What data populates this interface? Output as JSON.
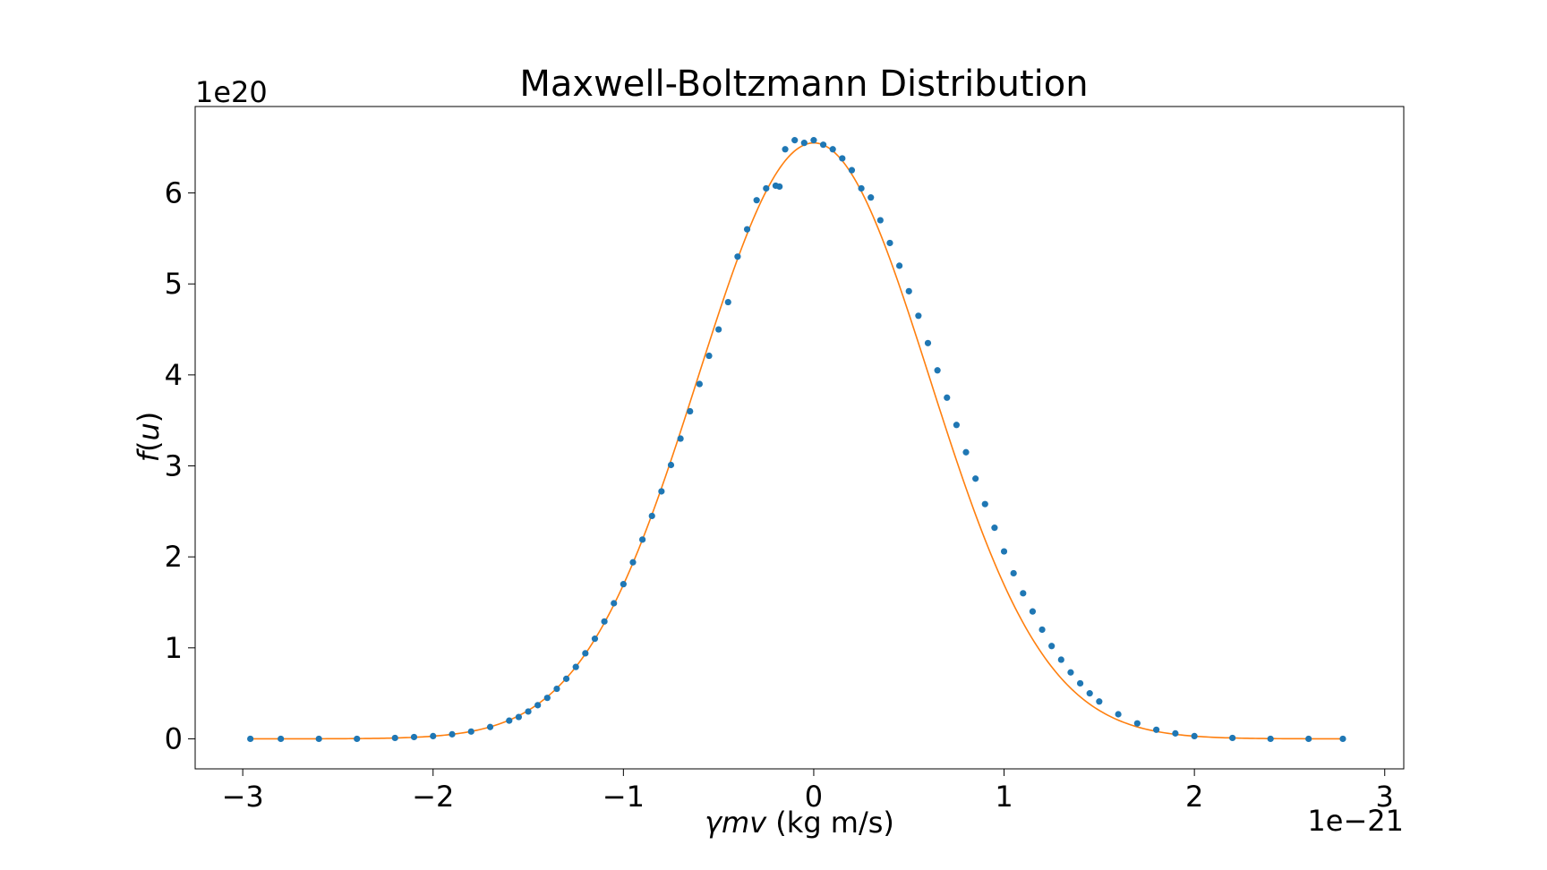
{
  "chart_data": {
    "type": "scatter",
    "title": "Maxwell-Boltzmann Distribution",
    "xlabel": "γmv (kg m/s)",
    "ylabel": "f(u)",
    "x_offset_label": "1e−21",
    "y_offset_label": "1e20",
    "xlim": [
      -3.25,
      3.1
    ],
    "ylim": [
      -0.33,
      6.95
    ],
    "x_ticks": [
      -3,
      -2,
      -1,
      0,
      1,
      2,
      3
    ],
    "x_tick_labels": [
      "−3",
      "−2",
      "−1",
      "0",
      "1",
      "2",
      "3"
    ],
    "y_ticks": [
      0,
      1,
      2,
      3,
      4,
      5,
      6
    ],
    "y_tick_labels": [
      "0",
      "1",
      "2",
      "3",
      "4",
      "5",
      "6"
    ],
    "grid": false,
    "series": [
      {
        "kind": "points",
        "color": "#1f77b4",
        "x": [
          -2.96,
          -2.8,
          -2.6,
          -2.4,
          -2.2,
          -2.1,
          -2.0,
          -1.9,
          -1.8,
          -1.7,
          -1.6,
          -1.55,
          -1.5,
          -1.45,
          -1.4,
          -1.35,
          -1.3,
          -1.25,
          -1.2,
          -1.15,
          -1.1,
          -1.05,
          -1.0,
          -0.95,
          -0.9,
          -0.85,
          -0.8,
          -0.75,
          -0.7,
          -0.65,
          -0.6,
          -0.55,
          -0.5,
          -0.45,
          -0.4,
          -0.35,
          -0.3,
          -0.25,
          -0.2,
          -0.18,
          -0.15,
          -0.1,
          -0.05,
          0.0,
          0.05,
          0.1,
          0.15,
          0.2,
          0.25,
          0.3,
          0.35,
          0.4,
          0.45,
          0.5,
          0.55,
          0.6,
          0.65,
          0.7,
          0.75,
          0.8,
          0.85,
          0.9,
          0.95,
          1.0,
          1.05,
          1.1,
          1.15,
          1.2,
          1.25,
          1.3,
          1.35,
          1.4,
          1.45,
          1.5,
          1.6,
          1.7,
          1.8,
          1.9,
          2.0,
          2.2,
          2.4,
          2.6,
          2.78
        ],
        "y": [
          0.0,
          0.0,
          0.0,
          0.0,
          0.01,
          0.02,
          0.03,
          0.05,
          0.08,
          0.13,
          0.2,
          0.24,
          0.3,
          0.37,
          0.45,
          0.55,
          0.66,
          0.79,
          0.94,
          1.1,
          1.29,
          1.49,
          1.7,
          1.94,
          2.19,
          2.45,
          2.72,
          3.01,
          3.3,
          3.6,
          3.9,
          4.21,
          4.5,
          4.8,
          5.3,
          5.6,
          5.92,
          6.05,
          6.08,
          6.07,
          6.48,
          6.58,
          6.55,
          6.58,
          6.53,
          6.48,
          6.38,
          6.25,
          6.05,
          5.95,
          5.7,
          5.45,
          5.2,
          4.92,
          4.65,
          4.35,
          4.05,
          3.75,
          3.45,
          3.15,
          2.86,
          2.58,
          2.32,
          2.06,
          1.82,
          1.6,
          1.4,
          1.2,
          1.02,
          0.87,
          0.73,
          0.61,
          0.5,
          0.41,
          0.27,
          0.17,
          0.1,
          0.06,
          0.03,
          0.01,
          0.0,
          0.0,
          0.0
        ]
      },
      {
        "kind": "fit-line",
        "color": "#ff7f0e",
        "mean": 0.0,
        "peak": 6.55,
        "sigma": 0.608,
        "x_start": -2.96,
        "x_end": 2.78
      }
    ]
  }
}
